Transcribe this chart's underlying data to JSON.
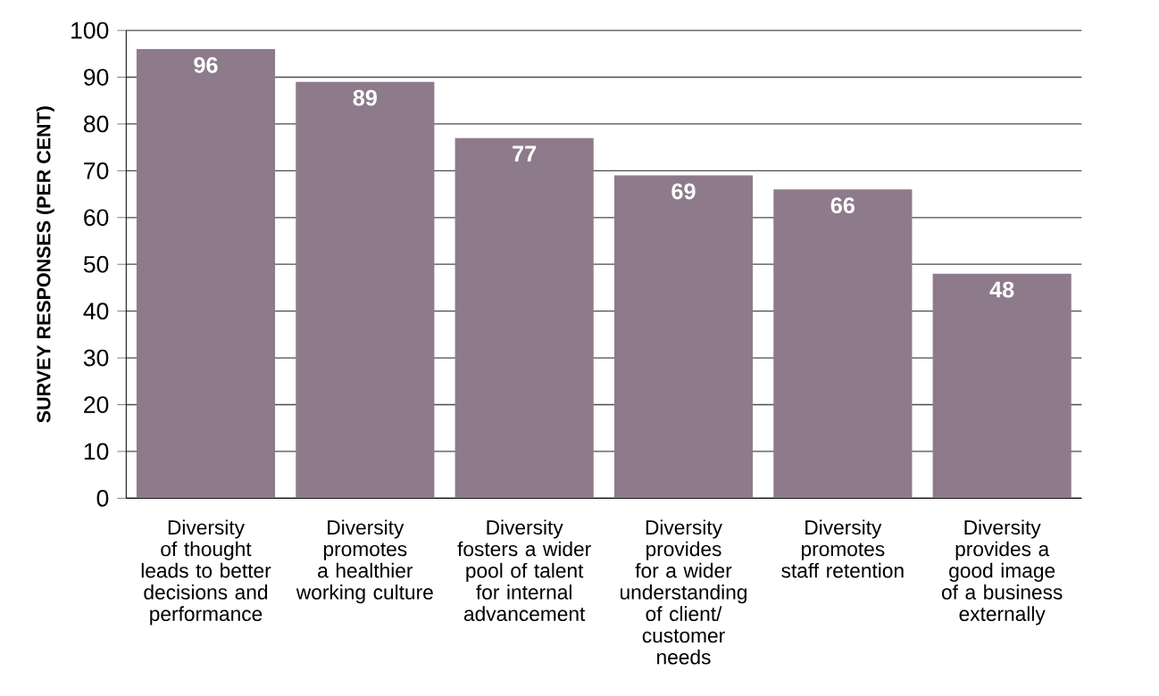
{
  "chart_data": {
    "type": "bar",
    "ylabel": "SURVEY RESPONSES (PER CENT)",
    "categories": [
      "Diversity of thought leads to better decisions and performance",
      "Diversity promotes a healthier working culture",
      "Diversity fosters a wider pool of talent for internal advancement",
      "Diversity provides for a wider understanding of client/ customer needs",
      "Diversity promotes staff retention",
      "Diversity provides a good image of a business externally"
    ],
    "values": [
      96,
      89,
      77,
      69,
      66,
      48
    ],
    "color": "#8d7b8c",
    "ylim": [
      0,
      100
    ],
    "yticks": [
      0,
      10,
      20,
      30,
      40,
      50,
      60,
      70,
      80,
      90,
      100
    ],
    "grid": "y",
    "data_labels": true
  }
}
